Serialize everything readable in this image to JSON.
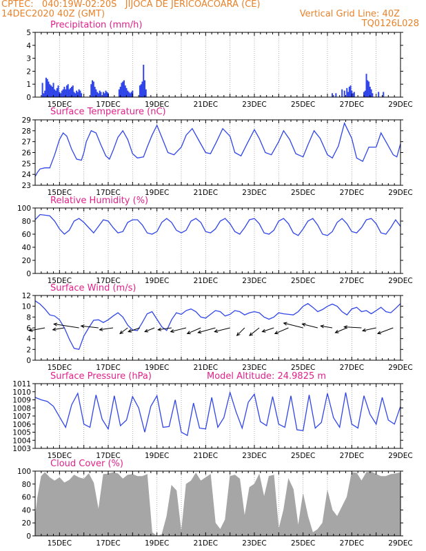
{
  "header": {
    "line1_left": "CPTEC:   040:19W-02:20S   JIJOCA DE JERICOACOARA (CE)",
    "line2_left": "14DEC2020 40Z (GMT)",
    "line2_right": "Vertical Grid Line: 40Z",
    "line3_right": "TQ0126L028"
  },
  "colors": {
    "header": "#e8822a",
    "title": "#e0218a",
    "series": "#2f45e8",
    "bars": "#2f45e8",
    "cloud": "#a6a6a6",
    "grid": "#999999"
  },
  "x_tick_labels": [
    "15DEC",
    "17DEC",
    "19DEC",
    "21DEC",
    "23DEC",
    "25DEC",
    "27DEC",
    "29DEC"
  ],
  "chart_data": [
    {
      "type": "bar",
      "title": "Precipitation (mm/h)",
      "x_start": "14DEC2020 40Z",
      "x_end": "29DEC",
      "ylim": [
        0,
        5
      ],
      "y_ticks": [
        "0",
        "1",
        "2",
        "3",
        "4",
        "5"
      ],
      "x": [
        0.3,
        0.35,
        0.4,
        0.45,
        0.5,
        0.55,
        0.6,
        0.65,
        0.7,
        0.75,
        0.8,
        0.85,
        0.9,
        0.95,
        1.0,
        1.05,
        1.1,
        1.15,
        1.2,
        1.25,
        1.3,
        1.35,
        1.4,
        1.45,
        1.5,
        1.55,
        1.6,
        1.65,
        1.7,
        1.75,
        1.8,
        1.85,
        1.9,
        2.3,
        2.35,
        2.4,
        2.45,
        2.5,
        2.55,
        2.6,
        2.65,
        2.7,
        2.8,
        2.85,
        2.9,
        2.95,
        3.0,
        3.45,
        3.5,
        3.55,
        3.6,
        3.65,
        3.7,
        3.75,
        3.8,
        3.85,
        3.9,
        3.95,
        4.0,
        4.3,
        4.35,
        4.4,
        4.45,
        4.5,
        4.55,
        12.2,
        12.35,
        12.6,
        12.7,
        12.8,
        12.85,
        12.9,
        12.95,
        13.0,
        13.05,
        13.1,
        13.5,
        13.55,
        13.6,
        13.65,
        13.7,
        13.75,
        13.8,
        13.85,
        14.1,
        14.3
      ],
      "values": [
        1.1,
        0.3,
        0.5,
        1.5,
        1.4,
        1.2,
        1.0,
        0.9,
        0.8,
        1.1,
        0.6,
        0.5,
        0.7,
        0.9,
        0.4,
        0.3,
        0.5,
        0.6,
        0.8,
        0.6,
        0.9,
        1.0,
        0.6,
        0.7,
        0.8,
        0.9,
        0.4,
        0.3,
        0.5,
        0.4,
        0.6,
        0.5,
        0.3,
        1.0,
        1.3,
        1.2,
        0.8,
        0.6,
        0.4,
        0.3,
        0.5,
        0.4,
        0.4,
        0.3,
        0.5,
        0.4,
        0.3,
        0.6,
        0.8,
        1.1,
        1.2,
        1.3,
        0.9,
        0.7,
        0.5,
        0.4,
        0.3,
        0.4,
        0.5,
        0.9,
        1.0,
        1.2,
        2.5,
        1.3,
        0.6,
        0.3,
        0.3,
        0.6,
        0.5,
        0.7,
        0.4,
        0.8,
        0.9,
        0.5,
        0.3,
        0.4,
        0.4,
        0.5,
        1.8,
        1.3,
        1.2,
        0.8,
        0.6,
        0.3,
        0.4,
        0.4
      ]
    },
    {
      "type": "line",
      "title": "Surface Temperature (nC)",
      "ylim": [
        23,
        29
      ],
      "y_ticks": [
        "23",
        "24",
        "25",
        "26",
        "27",
        "28",
        "29"
      ],
      "series": [
        {
          "x": [
            0,
            0.1,
            0.2,
            0.4,
            0.6,
            0.8,
            1.0,
            1.15,
            1.3,
            1.5,
            1.7,
            1.9,
            2.0,
            2.1,
            2.3,
            2.5,
            2.7,
            2.9,
            3.05,
            3.2,
            3.4,
            3.6,
            3.8,
            4.0,
            4.2,
            4.45,
            4.6,
            4.8,
            5.0,
            5.2,
            5.45,
            5.7,
            6.0,
            6.2,
            6.45,
            6.7,
            7.0,
            7.2,
            7.45,
            7.7,
            8.0,
            8.2,
            8.45,
            8.7,
            9.0,
            9.2,
            9.45,
            9.7,
            10.0,
            10.2,
            10.45,
            10.7,
            11.0,
            11.2,
            11.45,
            11.7,
            12.0,
            12.2,
            12.45,
            12.7,
            13.0,
            13.2,
            13.45,
            13.7,
            14.0,
            14.2,
            14.45,
            14.7,
            14.85,
            15.0
          ],
          "values": [
            23.8,
            24.2,
            24.5,
            24.6,
            24.6,
            25.8,
            27.2,
            27.8,
            27.5,
            26.3,
            25.4,
            25.3,
            26.0,
            27.0,
            28.0,
            27.8,
            26.7,
            25.7,
            25.4,
            26.2,
            27.4,
            28.0,
            27.2,
            25.9,
            25.5,
            25.6,
            26.5,
            27.6,
            28.5,
            27.4,
            26.0,
            25.8,
            26.5,
            27.6,
            28.2,
            27.2,
            26.0,
            25.9,
            27.0,
            28.2,
            27.5,
            26.0,
            25.7,
            26.8,
            28.1,
            27.3,
            26.0,
            25.8,
            27.0,
            28.0,
            27.2,
            25.9,
            25.6,
            26.7,
            28.0,
            27.3,
            25.8,
            25.5,
            26.6,
            28.7,
            27.3,
            25.5,
            25.2,
            26.5,
            26.5,
            27.8,
            26.8,
            25.8,
            25.6,
            26.8
          ]
        }
      ]
    },
    {
      "type": "line",
      "title": "Relative Humidity (%)",
      "ylim": [
        0,
        100
      ],
      "y_ticks": [
        "0",
        "20",
        "40",
        "60",
        "80",
        "100"
      ],
      "series": [
        {
          "x": [
            0,
            0.2,
            0.4,
            0.6,
            0.8,
            1.0,
            1.2,
            1.4,
            1.6,
            1.8,
            2.0,
            2.2,
            2.4,
            2.6,
            2.8,
            3.0,
            3.2,
            3.4,
            3.6,
            3.8,
            4.0,
            4.2,
            4.4,
            4.6,
            4.8,
            5.0,
            5.2,
            5.4,
            5.6,
            5.8,
            6.0,
            6.2,
            6.4,
            6.6,
            6.8,
            7.0,
            7.2,
            7.4,
            7.6,
            7.8,
            8.0,
            8.2,
            8.4,
            8.6,
            8.8,
            9.0,
            9.2,
            9.4,
            9.6,
            9.8,
            10.0,
            10.2,
            10.4,
            10.6,
            10.8,
            11.0,
            11.2,
            11.4,
            11.6,
            11.8,
            12.0,
            12.2,
            12.4,
            12.6,
            12.8,
            13.0,
            13.2,
            13.4,
            13.6,
            13.8,
            14.0,
            14.2,
            14.4,
            14.6,
            14.8,
            15.0
          ],
          "values": [
            82,
            90,
            89,
            88,
            80,
            68,
            60,
            66,
            80,
            84,
            78,
            70,
            62,
            72,
            82,
            80,
            70,
            62,
            64,
            78,
            82,
            82,
            74,
            62,
            60,
            64,
            78,
            84,
            78,
            66,
            62,
            66,
            80,
            84,
            78,
            64,
            62,
            68,
            80,
            84,
            76,
            64,
            60,
            70,
            82,
            84,
            76,
            62,
            60,
            66,
            80,
            84,
            76,
            62,
            58,
            68,
            80,
            84,
            74,
            60,
            58,
            64,
            78,
            84,
            76,
            64,
            62,
            70,
            82,
            84,
            76,
            62,
            60,
            70,
            82,
            72
          ]
        }
      ]
    },
    {
      "type": "line",
      "title": "Surface Wind (m/s)",
      "ylim": [
        0,
        12
      ],
      "y_ticks": [
        "0",
        "2",
        "4",
        "6",
        "8",
        "10",
        "12"
      ],
      "series": [
        {
          "x": [
            0,
            0.2,
            0.4,
            0.6,
            0.8,
            1.0,
            1.2,
            1.4,
            1.6,
            1.8,
            2.0,
            2.2,
            2.4,
            2.6,
            2.8,
            3.0,
            3.2,
            3.4,
            3.6,
            3.8,
            4.0,
            4.2,
            4.4,
            4.6,
            4.8,
            5.0,
            5.2,
            5.4,
            5.6,
            5.8,
            6.0,
            6.2,
            6.4,
            6.6,
            6.8,
            7.0,
            7.2,
            7.4,
            7.6,
            7.8,
            8.0,
            8.2,
            8.4,
            8.6,
            8.8,
            9.0,
            9.2,
            9.4,
            9.6,
            9.8,
            10.0,
            10.2,
            10.4,
            10.6,
            10.8,
            11.0,
            11.2,
            11.4,
            11.6,
            11.8,
            12.0,
            12.2,
            12.4,
            12.6,
            12.8,
            13.0,
            13.2,
            13.4,
            13.6,
            13.8,
            14.0,
            14.2,
            14.4,
            14.6,
            14.8,
            15.0
          ],
          "values": [
            11,
            10.4,
            9.5,
            8.4,
            8.2,
            7.5,
            6.0,
            3.9,
            2.2,
            2.0,
            4.5,
            6.0,
            7.4,
            7.5,
            7.0,
            7.5,
            8.2,
            8.8,
            8.0,
            6.5,
            5.6,
            5.5,
            7.0,
            8.6,
            9.0,
            7.6,
            6.2,
            5.5,
            7.5,
            8.8,
            8.5,
            9.2,
            9.5,
            9.0,
            8.0,
            7.8,
            8.5,
            9.2,
            9.0,
            8.2,
            8.5,
            9.2,
            9.0,
            8.4,
            8.8,
            9.0,
            8.8,
            8.0,
            7.6,
            8.0,
            8.8,
            8.6,
            8.5,
            8.4,
            9.0,
            10.0,
            10.5,
            9.8,
            9.0,
            9.4,
            10.0,
            10.4,
            10.0,
            9.0,
            8.4,
            9.5,
            9.8,
            9.0,
            9.2,
            8.6,
            9.2,
            9.8,
            9.0,
            8.8,
            9.6,
            10.5
          ]
        }
      ],
      "wind_vectors": {
        "x": [
          0.4,
          1.2,
          1.8,
          2.6,
          3.2,
          3.8,
          4.3,
          4.9,
          5.6,
          6.2,
          6.8,
          7.4,
          8.0,
          8.6,
          9.2,
          9.8,
          10.4,
          11.0,
          11.6,
          12.2,
          12.8,
          13.4,
          14.0,
          14.7
        ],
        "u": [
          -1.6,
          -1.2,
          -2.6,
          -1.8,
          -1.4,
          -0.8,
          -1.2,
          -1.0,
          -1.4,
          -1.6,
          -1.4,
          -1.8,
          -1.6,
          -0.8,
          -1.0,
          -1.2,
          -1.4,
          -2.0,
          -1.6,
          -1.2,
          -1.2,
          -1.8,
          -1.4,
          -1.6
        ],
        "v": [
          -0.3,
          -0.2,
          0.4,
          0.2,
          -0.2,
          -0.6,
          -0.4,
          -0.4,
          -0.2,
          -0.4,
          -0.6,
          -0.5,
          -0.4,
          -0.8,
          -0.8,
          -0.4,
          -0.6,
          0.5,
          0.4,
          0.2,
          -0.5,
          0.1,
          -0.3,
          -0.6
        ]
      }
    },
    {
      "type": "line",
      "title": "Surface Pressure (hPa)",
      "annotation": "Model Altitude: 24.9825 m",
      "ylim": [
        1003,
        1011
      ],
      "y_ticks": [
        "1003",
        "1004",
        "1005",
        "1006",
        "1007",
        "1008",
        "1009",
        "1010",
        "1011"
      ],
      "series": [
        {
          "x": [
            0,
            0.25,
            0.5,
            0.75,
            1.0,
            1.25,
            1.5,
            1.75,
            2.0,
            2.25,
            2.5,
            2.75,
            3.0,
            3.25,
            3.5,
            3.75,
            4.0,
            4.25,
            4.5,
            4.75,
            5.0,
            5.25,
            5.5,
            5.75,
            6.0,
            6.25,
            6.5,
            6.75,
            7.0,
            7.25,
            7.5,
            7.75,
            8.0,
            8.25,
            8.5,
            8.75,
            9.0,
            9.25,
            9.5,
            9.75,
            10.0,
            10.25,
            10.5,
            10.75,
            11.0,
            11.25,
            11.5,
            11.75,
            12.0,
            12.25,
            12.5,
            12.75,
            13.0,
            13.25,
            13.5,
            13.75,
            14.0,
            14.25,
            14.5,
            14.75,
            15.0
          ],
          "values": [
            1009.3,
            1009.0,
            1008.8,
            1008.2,
            1006.9,
            1005.6,
            1008.4,
            1009.8,
            1006.0,
            1005.6,
            1009.6,
            1006.6,
            1005.4,
            1009.5,
            1005.8,
            1006.5,
            1009.4,
            1008.0,
            1005.0,
            1008.2,
            1009.5,
            1005.6,
            1005.7,
            1009.0,
            1005.0,
            1004.6,
            1008.6,
            1005.5,
            1005.4,
            1009.3,
            1005.6,
            1006.8,
            1009.9,
            1007.5,
            1005.5,
            1008.7,
            1009.7,
            1006.3,
            1005.8,
            1009.4,
            1006.0,
            1005.6,
            1009.5,
            1005.3,
            1005.2,
            1009.6,
            1005.5,
            1006.2,
            1009.8,
            1006.8,
            1005.6,
            1009.9,
            1006.0,
            1005.5,
            1009.5,
            1007.2,
            1006.0,
            1009.3,
            1006.5,
            1006.0,
            1008.2
          ]
        }
      ]
    },
    {
      "type": "area",
      "title": "Cloud Cover (%)",
      "ylim": [
        0,
        100
      ],
      "y_ticks": [
        "0",
        "20",
        "40",
        "60",
        "80",
        "100"
      ],
      "series": [
        {
          "x": [
            0,
            0.1,
            0.25,
            0.4,
            0.6,
            0.8,
            1.0,
            1.2,
            1.4,
            1.6,
            1.8,
            2.0,
            2.2,
            2.4,
            2.6,
            2.8,
            3.0,
            3.2,
            3.4,
            3.6,
            3.8,
            4.0,
            4.2,
            4.4,
            4.6,
            4.8,
            5.0,
            5.2,
            5.4,
            5.6,
            5.8,
            6.0,
            6.2,
            6.4,
            6.6,
            6.8,
            7.0,
            7.2,
            7.4,
            7.6,
            7.8,
            8.0,
            8.2,
            8.4,
            8.6,
            8.8,
            9.0,
            9.2,
            9.4,
            9.6,
            9.8,
            10.0,
            10.2,
            10.4,
            10.6,
            10.8,
            11.0,
            11.2,
            11.4,
            11.6,
            11.8,
            12.0,
            12.2,
            12.4,
            12.6,
            12.8,
            13.0,
            13.2,
            13.4,
            13.6,
            13.8,
            14.0,
            14.2,
            14.4,
            14.6,
            14.8,
            15.0
          ],
          "values": [
            28,
            60,
            92,
            98,
            90,
            85,
            90,
            82,
            86,
            94,
            90,
            88,
            96,
            82,
            40,
            95,
            96,
            98,
            96,
            88,
            94,
            95,
            92,
            92,
            95,
            5,
            0,
            2,
            30,
            78,
            70,
            5,
            80,
            85,
            97,
            85,
            90,
            95,
            20,
            10,
            25,
            92,
            94,
            88,
            30,
            75,
            80,
            95,
            60,
            92,
            94,
            10,
            40,
            88,
            72,
            15,
            65,
            30,
            5,
            10,
            20,
            70,
            40,
            30,
            45,
            60,
            98,
            97,
            85,
            98,
            99,
            95,
            92,
            92,
            95,
            96,
            98
          ]
        }
      ]
    }
  ]
}
